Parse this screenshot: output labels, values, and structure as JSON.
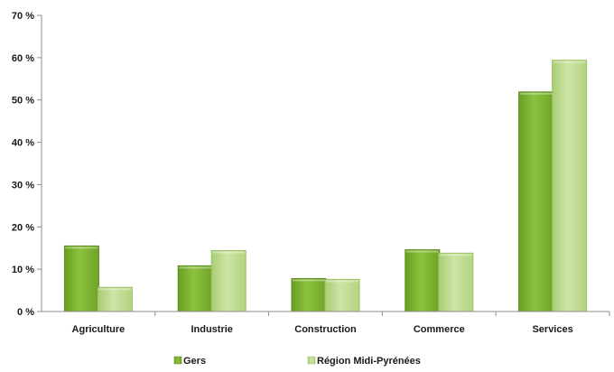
{
  "chart_data": {
    "type": "bar",
    "categories": [
      "Agriculture",
      "Industrie",
      "Construction",
      "Commerce",
      "Services"
    ],
    "series": [
      {
        "name": "Gers",
        "values": [
          15.5,
          10.8,
          7.8,
          14.6,
          51.9
        ],
        "color": "#7aad2e"
      },
      {
        "name": "Région Midi-Pyrénées",
        "values": [
          5.7,
          14.4,
          7.6,
          13.8,
          59.4
        ],
        "color": "#b9d98a"
      }
    ],
    "ylim": [
      0,
      70
    ],
    "yticks": [
      "0 %",
      "10 %",
      "20 %",
      "30 %",
      "40 %",
      "50 %",
      "60 %",
      "70 %"
    ],
    "ytick_values": [
      0,
      10,
      20,
      30,
      40,
      50,
      60,
      70
    ],
    "grid": false,
    "legend_position": "bottom",
    "title": "",
    "xlabel": "",
    "ylabel": ""
  }
}
